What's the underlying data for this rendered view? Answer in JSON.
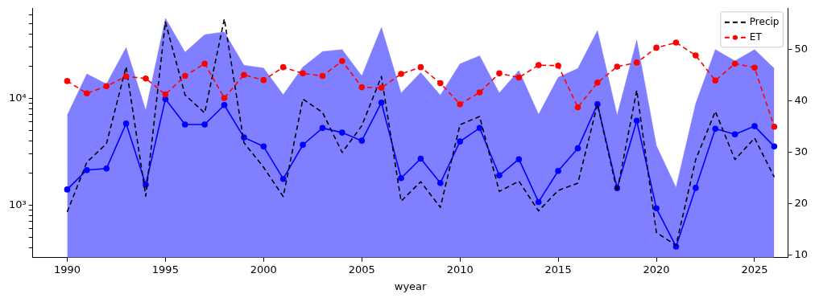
{
  "chart_data": {
    "type": "line",
    "xlabel": "wyear",
    "x": [
      1990,
      1991,
      1992,
      1993,
      1994,
      1995,
      1996,
      1997,
      1998,
      1999,
      2000,
      2001,
      2002,
      2003,
      2004,
      2005,
      2006,
      2007,
      2008,
      2009,
      2010,
      2011,
      2012,
      2013,
      2014,
      2015,
      2016,
      2017,
      2018,
      2019,
      2020,
      2021,
      2022,
      2023,
      2024,
      2025,
      2026
    ],
    "xlim": [
      1988.25,
      2026.7
    ],
    "xticks": [
      1990,
      1995,
      2000,
      2005,
      2010,
      2015,
      2020,
      2025
    ],
    "log": "y",
    "ylim": [
      322,
      69000
    ],
    "yticks": [
      {
        "value": 400,
        "label": null
      },
      {
        "value": 500,
        "label": null
      },
      {
        "value": 600,
        "label": null
      },
      {
        "value": 700,
        "label": null
      },
      {
        "value": 800,
        "label": null
      },
      {
        "value": 900,
        "label": null
      },
      {
        "value": 1000,
        "label": "10³"
      },
      {
        "value": 2000,
        "label": null
      },
      {
        "value": 3000,
        "label": null
      },
      {
        "value": 4000,
        "label": null
      },
      {
        "value": 5000,
        "label": null
      },
      {
        "value": 6000,
        "label": null
      },
      {
        "value": 7000,
        "label": null
      },
      {
        "value": 8000,
        "label": null
      },
      {
        "value": 9000,
        "label": null
      },
      {
        "value": 10000,
        "label": "10⁴"
      },
      {
        "value": 20000,
        "label": null
      },
      {
        "value": 30000,
        "label": null
      },
      {
        "value": 40000,
        "label": null
      },
      {
        "value": 50000,
        "label": null
      },
      {
        "value": 60000,
        "label": null
      }
    ],
    "y2lim": [
      9.5,
      58
    ],
    "y2ticks": [
      10,
      20,
      30,
      40,
      50
    ],
    "grid": false,
    "legend": "top right",
    "series": [
      {
        "type": "area",
        "color": "#7f7fff",
        "marker": "none",
        "line_style": "solid",
        "values": [
          6920,
          16900,
          13600,
          29800,
          7700,
          56000,
          27000,
          39400,
          41800,
          20400,
          19200,
          10800,
          19600,
          27400,
          28600,
          16200,
          46100,
          11200,
          17400,
          10700,
          21000,
          25000,
          11200,
          18200,
          7050,
          15700,
          19000,
          43000,
          6920,
          35100,
          3600,
          1460,
          8900,
          28600,
          22400,
          28600,
          19000
        ]
      },
      {
        "type": "line",
        "color": "#0000ff",
        "marker": "circle",
        "line_style": "solid",
        "values": [
          1400,
          2130,
          2200,
          5800,
          1550,
          9830,
          5690,
          5690,
          8650,
          4300,
          3540,
          1760,
          3670,
          5270,
          4770,
          4010,
          9120,
          1790,
          2720,
          1610,
          3940,
          5270,
          1900,
          2690,
          1070,
          2090,
          3400,
          8810,
          1440,
          6170,
          934,
          409,
          1450,
          5180,
          4600,
          5480,
          3540
        ]
      },
      {
        "type": "line",
        "name": "Precip",
        "axis": "y2",
        "color": "#000000",
        "marker": "none",
        "line_style": "dashed",
        "values": [
          18.4,
          28.1,
          31.7,
          46.7,
          21.5,
          55.4,
          41.2,
          37.7,
          56,
          31.9,
          27.1,
          21.4,
          40.4,
          37.8,
          30.0,
          35.2,
          44.8,
          20.5,
          24.3,
          19.3,
          35.4,
          37.0,
          22.4,
          24.4,
          18.6,
          22.6,
          24.0,
          39.4,
          22.4,
          42.1,
          14.4,
          11.9,
          28.6,
          38.0,
          28.6,
          32.8,
          25.2
        ]
      },
      {
        "type": "line",
        "name": "ET",
        "axis": "y2",
        "color": "#ff0000",
        "marker": "circle",
        "line_style": "dashed",
        "values": [
          43.9,
          41.5,
          42.9,
          44.8,
          44.4,
          41.3,
          44.9,
          47.3,
          40.6,
          45.1,
          44.1,
          46.6,
          45.4,
          44.9,
          47.8,
          42.7,
          42.6,
          45.3,
          46.6,
          43.5,
          39.4,
          41.7,
          45.4,
          44.6,
          47.0,
          46.9,
          38.8,
          43.6,
          46.7,
          47.5,
          50.4,
          51.4,
          48.9,
          44.0,
          47.3,
          46.5,
          35.0
        ]
      }
    ]
  }
}
